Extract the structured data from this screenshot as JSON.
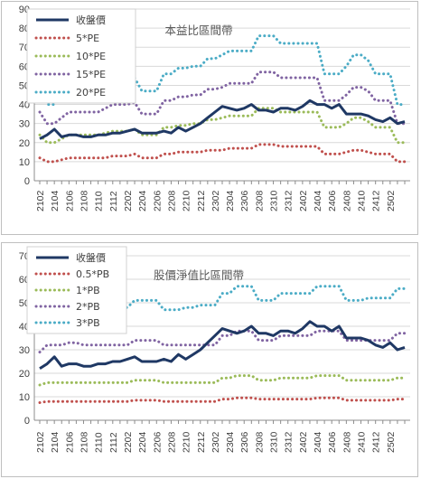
{
  "chart_data": [
    {
      "type": "line",
      "title": "本益比區間帶",
      "xlabel": "",
      "ylabel": "",
      "ylim": [
        0,
        90
      ],
      "yticks": [
        "0",
        "10",
        "20",
        "30",
        "40",
        "50",
        "60",
        "70",
        "80",
        "90"
      ],
      "grid": "horizontal",
      "legend": "top-left",
      "x_tick_labels": [
        "2102",
        "2104",
        "2106",
        "2108",
        "2110",
        "2112",
        "2202",
        "2204",
        "2206",
        "2208",
        "2210",
        "2212",
        "2302",
        "2304",
        "2306",
        "2308",
        "2310",
        "2312",
        "2402",
        "2404",
        "2406",
        "2408",
        "2410",
        "2412",
        "2502"
      ],
      "series": [
        {
          "name": "收盤價",
          "color": "#1f3864",
          "style": "solid",
          "values": [
            22,
            24,
            27,
            23,
            24,
            24,
            23,
            23,
            24,
            24,
            25,
            25,
            26,
            27,
            25,
            25,
            25,
            26,
            25,
            28,
            26,
            28,
            30,
            33,
            36,
            39,
            38,
            37,
            38,
            40,
            37,
            37,
            36,
            38,
            38,
            37,
            39,
            42,
            40,
            40,
            38,
            40,
            35,
            35,
            35,
            34,
            32,
            31,
            33,
            30,
            31
          ]
        },
        {
          "name": "5*PE",
          "color": "#c0504d",
          "style": "dotted",
          "values": [
            12,
            10,
            10,
            11,
            12,
            12,
            12,
            12,
            12,
            12,
            13,
            13,
            13,
            14,
            12,
            12,
            12,
            14,
            14,
            15,
            15,
            15,
            15,
            16,
            16,
            16,
            17,
            17,
            17,
            17,
            19,
            19,
            19,
            18,
            18,
            18,
            18,
            18,
            18,
            14,
            14,
            14,
            15,
            16,
            16,
            15,
            14,
            14,
            14,
            10,
            10
          ]
        },
        {
          "name": "10*PE",
          "color": "#9bbb59",
          "style": "dotted",
          "values": [
            24,
            20,
            20,
            22,
            24,
            24,
            24,
            24,
            24,
            25,
            26,
            26,
            26,
            27,
            24,
            24,
            24,
            28,
            28,
            29,
            29,
            30,
            30,
            32,
            32,
            33,
            34,
            34,
            34,
            34,
            38,
            38,
            38,
            36,
            36,
            36,
            36,
            36,
            36,
            28,
            28,
            28,
            30,
            33,
            33,
            31,
            28,
            28,
            28,
            20,
            20
          ]
        },
        {
          "name": "15*PE",
          "color": "#8064a2",
          "style": "dotted",
          "values": [
            36,
            30,
            30,
            33,
            36,
            36,
            36,
            36,
            36,
            38,
            40,
            40,
            40,
            41,
            35,
            35,
            35,
            42,
            42,
            44,
            44,
            45,
            45,
            48,
            48,
            49,
            51,
            51,
            51,
            51,
            57,
            57,
            57,
            54,
            54,
            54,
            54,
            54,
            54,
            42,
            42,
            42,
            45,
            49,
            49,
            47,
            42,
            42,
            42,
            30,
            30
          ]
        },
        {
          "name": "20*PE",
          "color": "#4bacc6",
          "style": "dotted",
          "values": [
            48,
            40,
            40,
            44,
            48,
            48,
            48,
            48,
            48,
            51,
            54,
            54,
            54,
            54,
            47,
            47,
            47,
            56,
            56,
            59,
            59,
            60,
            60,
            64,
            64,
            66,
            68,
            68,
            68,
            68,
            76,
            76,
            76,
            72,
            72,
            72,
            72,
            72,
            72,
            56,
            56,
            56,
            60,
            66,
            66,
            63,
            56,
            56,
            56,
            40,
            40
          ]
        }
      ]
    },
    {
      "type": "line",
      "title": "股價淨值比區間帶",
      "xlabel": "",
      "ylabel": "",
      "ylim": [
        0,
        70
      ],
      "yticks": [
        "0",
        "10",
        "20",
        "30",
        "40",
        "50",
        "60",
        "70"
      ],
      "grid": "horizontal",
      "legend": "top-left",
      "x_tick_labels": [
        "2102",
        "2104",
        "2106",
        "2108",
        "2110",
        "2112",
        "2202",
        "2204",
        "2206",
        "2208",
        "2210",
        "2212",
        "2302",
        "2304",
        "2306",
        "2308",
        "2310",
        "2312",
        "2402",
        "2404",
        "2406",
        "2408",
        "2410",
        "2412",
        "2502"
      ],
      "series": [
        {
          "name": "收盤價",
          "color": "#1f3864",
          "style": "solid",
          "values": [
            22,
            24,
            27,
            23,
            24,
            24,
            23,
            23,
            24,
            24,
            25,
            25,
            26,
            27,
            25,
            25,
            25,
            26,
            25,
            28,
            26,
            28,
            30,
            33,
            36,
            39,
            38,
            37,
            38,
            40,
            37,
            37,
            36,
            38,
            38,
            37,
            39,
            42,
            40,
            40,
            38,
            40,
            35,
            35,
            35,
            34,
            32,
            31,
            33,
            30,
            31
          ]
        },
        {
          "name": "0.5*PB",
          "color": "#c0504d",
          "style": "dotted",
          "values": [
            7.5,
            8,
            8,
            8,
            8,
            8,
            8,
            8,
            8,
            8,
            8,
            8,
            8,
            8.5,
            8.5,
            8.5,
            8.5,
            8,
            8,
            8,
            8,
            8,
            8,
            8,
            8,
            9,
            9,
            9.5,
            9.5,
            9.5,
            9,
            9,
            9,
            9,
            9,
            9,
            9,
            9,
            9.5,
            9.5,
            9.5,
            9.5,
            8.5,
            8.5,
            8.5,
            8.5,
            8.5,
            8.5,
            8.5,
            9,
            9
          ]
        },
        {
          "name": "1*PB",
          "color": "#9bbb59",
          "style": "dotted",
          "values": [
            15,
            16,
            16,
            16,
            16,
            16,
            16,
            16,
            16,
            16,
            16,
            16,
            16,
            17,
            17,
            17,
            17,
            16,
            16,
            16,
            16,
            16,
            16,
            16,
            16,
            18,
            18,
            19,
            19,
            19,
            17,
            17,
            17,
            18,
            18,
            18,
            18,
            18,
            19,
            19,
            19,
            19,
            17,
            17,
            17,
            17,
            17,
            17,
            17,
            18,
            18
          ]
        },
        {
          "name": "2*PB",
          "color": "#8064a2",
          "style": "dotted",
          "values": [
            29,
            32,
            32,
            32,
            33,
            33,
            32,
            32,
            32,
            32,
            32,
            32,
            32,
            34,
            34,
            34,
            34,
            32,
            32,
            32,
            32,
            32,
            32,
            32,
            32,
            36,
            36,
            38,
            38,
            38,
            34,
            34,
            34,
            36,
            36,
            36,
            36,
            36,
            38,
            38,
            38,
            38,
            34,
            34,
            34,
            34,
            34,
            34,
            34,
            37,
            37
          ]
        },
        {
          "name": "3*PB",
          "color": "#4bacc6",
          "style": "dotted",
          "values": [
            44,
            48,
            48,
            48,
            49,
            49,
            48,
            48,
            48,
            48,
            48,
            48,
            48,
            51,
            51,
            51,
            51,
            47,
            47,
            47,
            48,
            48,
            49,
            49,
            49,
            54,
            54,
            57,
            57,
            57,
            51,
            51,
            51,
            54,
            54,
            54,
            54,
            54,
            57,
            57,
            57,
            57,
            51,
            51,
            51,
            52,
            52,
            52,
            52,
            56,
            56
          ]
        }
      ]
    }
  ]
}
